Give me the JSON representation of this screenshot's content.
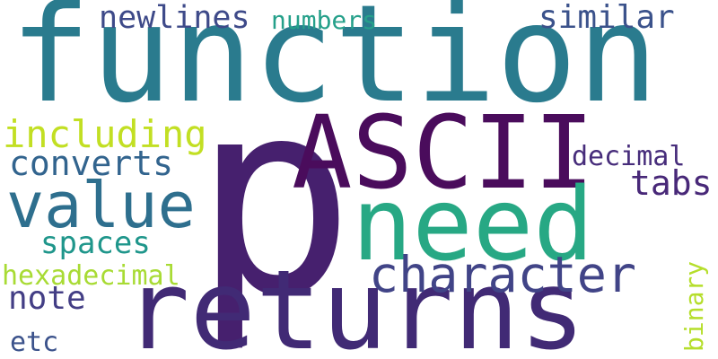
{
  "word_cloud": {
    "words": [
      {
        "text": "function",
        "color": "#2a7b8e"
      },
      {
        "text": "p",
        "color": "#46206e"
      },
      {
        "text": "ASCII",
        "color": "#4a0c5c"
      },
      {
        "text": "need",
        "color": "#27a884"
      },
      {
        "text": "returns",
        "color": "#412a75"
      },
      {
        "text": "value",
        "color": "#2e6f8e"
      },
      {
        "text": "character",
        "color": "#414487"
      },
      {
        "text": "including",
        "color": "#c2df23"
      },
      {
        "text": "converts",
        "color": "#32648e"
      },
      {
        "text": "similar",
        "color": "#3b528b"
      },
      {
        "text": "newlines",
        "color": "#3e4a89"
      },
      {
        "text": "numbers",
        "color": "#25a08a"
      },
      {
        "text": "tabs",
        "color": "#482878"
      },
      {
        "text": "decimal",
        "color": "#472d7b"
      },
      {
        "text": "spaces",
        "color": "#1f968b"
      },
      {
        "text": "hexadecimal",
        "color": "#a8db34"
      },
      {
        "text": "note",
        "color": "#433e85"
      },
      {
        "text": "etc",
        "color": "#3b528b"
      },
      {
        "text": "binary",
        "color": "#b5de2b"
      }
    ]
  }
}
